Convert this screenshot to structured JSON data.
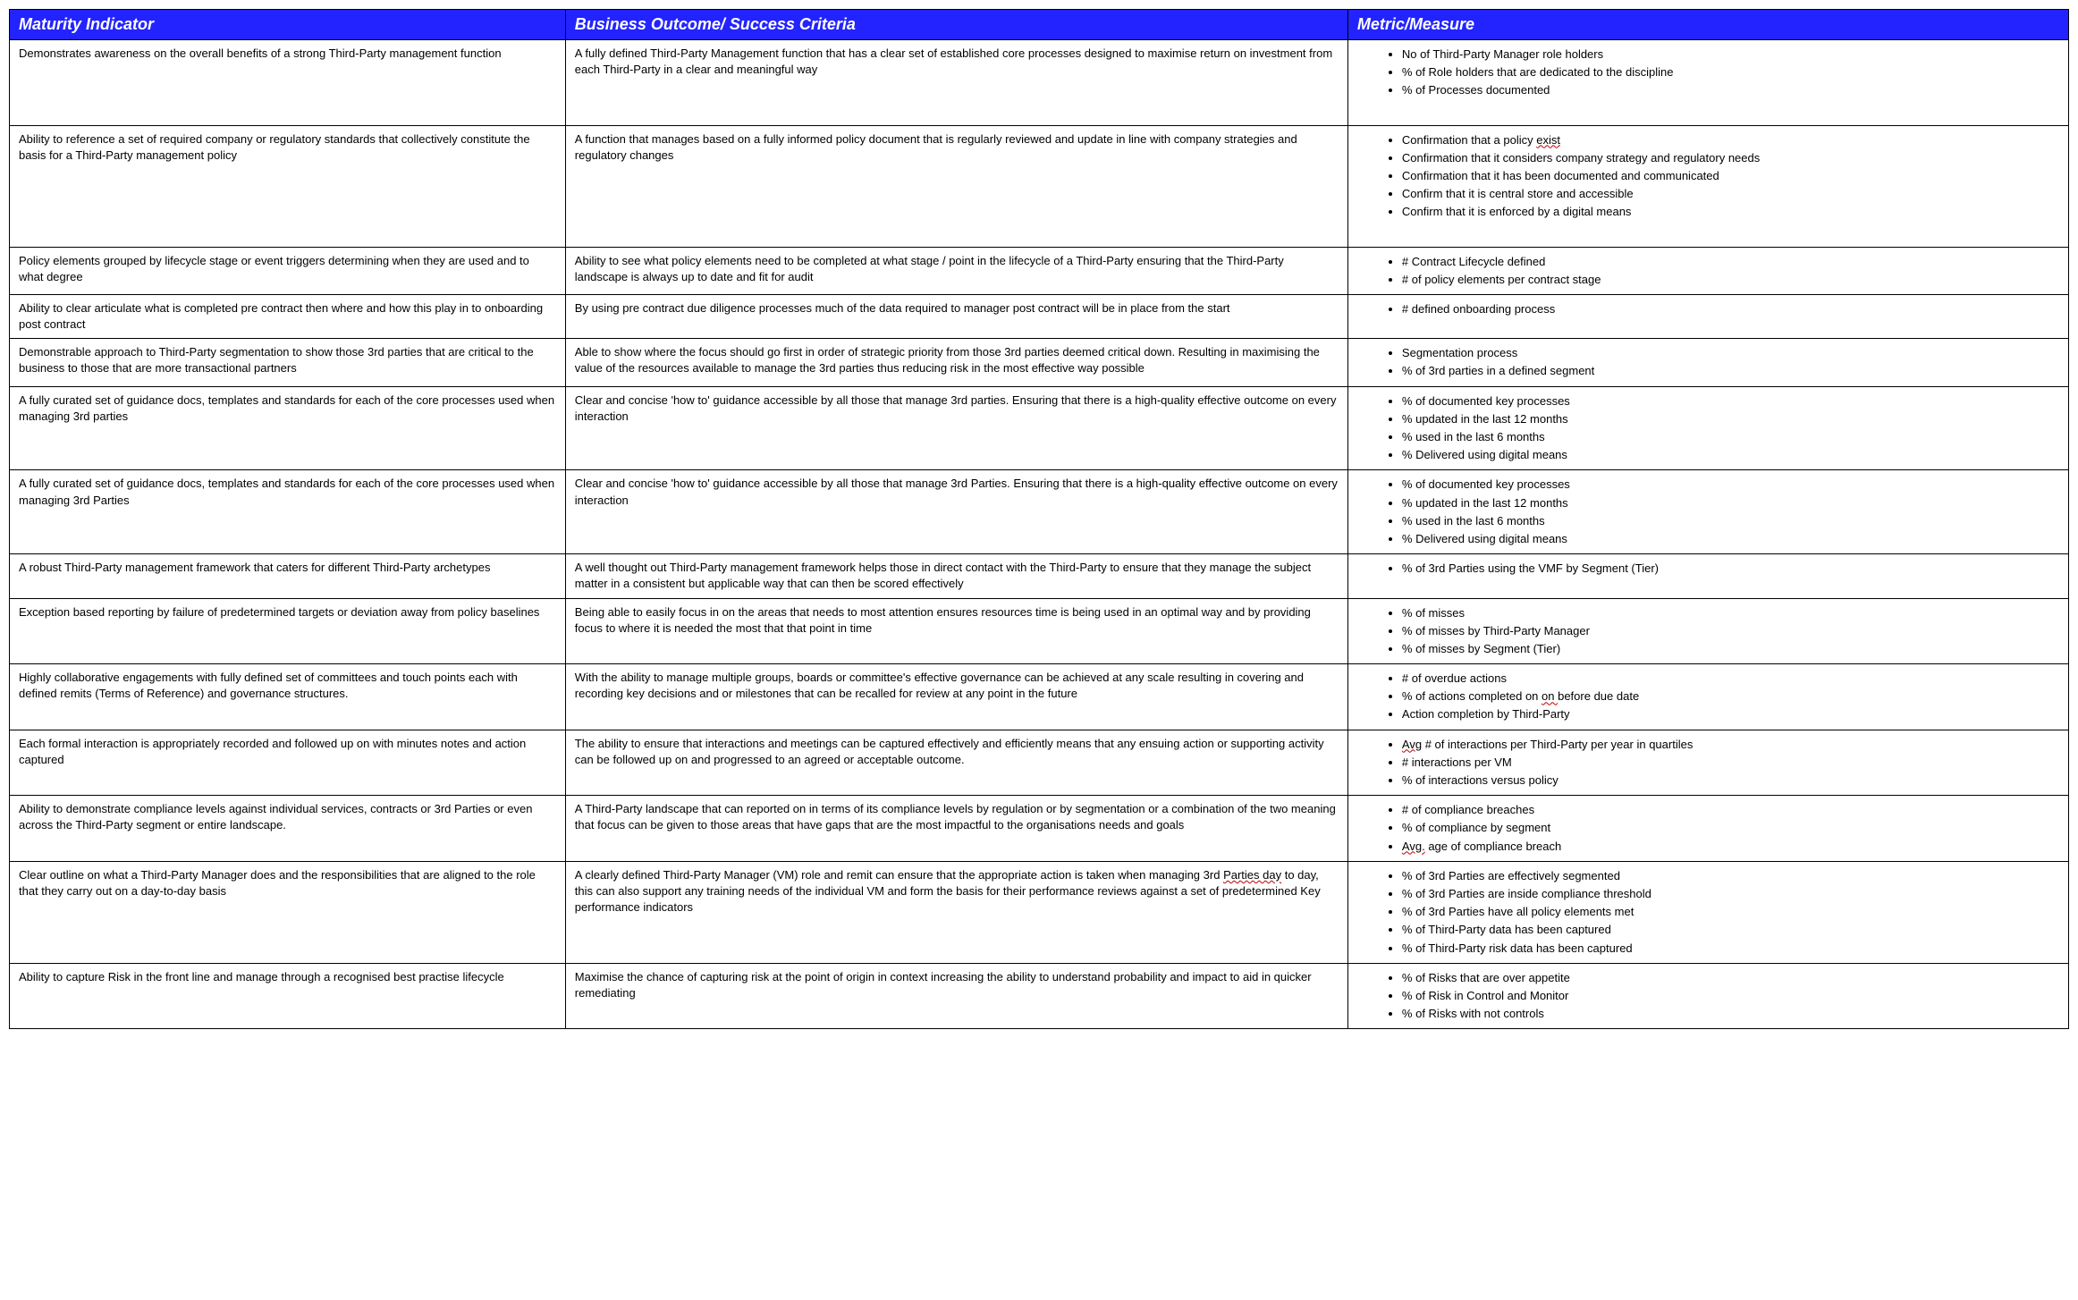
{
  "header_bg": "#2323ff",
  "header_fg": "#ffffff",
  "border_color": "#000000",
  "headers": {
    "c0": "Maturity Indicator",
    "c1": "Business Outcome/ Success Criteria",
    "c2": "Metric/Measure"
  },
  "rows": [
    {
      "indicator": "Demonstrates awareness on the overall benefits of a strong Third-Party management function",
      "outcome": "A fully defined Third-Party Management function that has a clear set of established core processes designed to maximise return on investment from each Third-Party in a clear and meaningful way",
      "metrics": [
        "No of Third-Party Manager role holders",
        "% of Role holders that are dedicated to the discipline",
        "% of Processes documented"
      ],
      "extra_pad_bottom": true
    },
    {
      "indicator": "Ability to reference a set of required company or regulatory standards that collectively constitute the basis for a Third-Party management policy",
      "outcome": "A function that manages based on a fully informed policy document that is regularly reviewed and update in line with company strategies and regulatory changes",
      "metrics": [
        "Confirmation that a policy <span class=\"squig\">exist</span>",
        "Confirmation that it considers company strategy and regulatory needs",
        "Confirmation that it has been documented and communicated",
        "Confirm that it is central store and accessible",
        "Confirm that it is enforced by a digital means"
      ],
      "extra_pad_bottom": true
    },
    {
      "indicator": "Policy elements grouped by lifecycle stage or event triggers determining when they are used and to what degree",
      "outcome": "Ability to see what policy elements need to be completed at what stage / point in the lifecycle of a Third-Party ensuring that the Third-Party landscape is always up to date and fit for audit",
      "metrics": [
        "# Contract Lifecycle defined",
        "# of policy elements per contract stage"
      ]
    },
    {
      "indicator": "Ability to clear articulate what is completed pre contract then where and how this play in to onboarding post contract",
      "outcome": "By using pre contract due diligence processes much of the data required to manager post contract will be in place from the start",
      "metrics": [
        "# defined onboarding process"
      ]
    },
    {
      "indicator": "Demonstrable approach to Third-Party segmentation to show those 3rd parties that are critical to the business to those that are more transactional partners",
      "outcome": "Able to show where the focus should go first in order of strategic priority from those 3rd parties deemed critical down. Resulting in maximising the value of the resources available to manage the 3rd parties thus reducing risk in the most effective way possible",
      "metrics": [
        "Segmentation process",
        "% of 3rd parties in a defined segment"
      ]
    },
    {
      "indicator": "A fully curated set of guidance docs, templates and standards for each of the core processes used when managing 3rd parties",
      "outcome": "Clear and concise 'how to' guidance accessible by all those that manage 3rd parties. Ensuring that there is a high-quality effective outcome on every interaction",
      "metrics": [
        "% of documented key processes",
        "% updated in the last 12 months",
        "% used in the last 6 months",
        "% Delivered using digital means"
      ]
    },
    {
      "indicator": "A fully curated set of guidance docs, templates and standards for each of the core processes used when managing 3rd Parties",
      "outcome": "Clear and concise 'how to' guidance accessible by all those that manage 3rd Parties. Ensuring that there is a high-quality effective outcome on every interaction",
      "metrics": [
        "% of documented key processes",
        "% updated in the last 12 months",
        "% used in the last 6 months",
        "% Delivered using digital means"
      ]
    },
    {
      "indicator": "A robust Third-Party management framework that caters for different Third-Party archetypes",
      "outcome": "A well thought out Third-Party management framework helps those in direct contact with the Third-Party to ensure that they manage the subject matter in a consistent but applicable way that can then be scored effectively",
      "metrics": [
        "% of 3rd Parties using the VMF by Segment (Tier)"
      ]
    },
    {
      "indicator": "Exception based reporting by failure of predetermined targets or deviation away from policy baselines",
      "outcome": "Being able to easily focus in on the areas that needs to most attention ensures resources time is being used in an optimal way and by providing focus to where it is needed the most that that point in time",
      "metrics": [
        "% of misses",
        "% of misses by Third-Party Manager",
        "% of misses by Segment (Tier)"
      ]
    },
    {
      "indicator": "Highly collaborative engagements with fully defined set of committees and touch points each with defined remits (Terms of Reference) and governance structures.",
      "outcome": "With the ability to manage multiple groups, boards or committee's effective governance can be achieved at any scale resulting in covering and recording key decisions and or milestones that can be recalled for review at any point in the future",
      "metrics": [
        "# of overdue actions",
        "% of actions completed on <span class=\"squig\">on </span>before due date",
        "Action completion by Third-Party"
      ]
    },
    {
      "indicator": "Each formal interaction is appropriately recorded and followed up on with minutes notes and action captured",
      "outcome": "The ability to ensure that interactions and meetings can be captured effectively and efficiently means that any ensuing action or supporting activity can be followed up on and progressed to an agreed or acceptable outcome.",
      "metrics": [
        "<span class=\"squig\">Avg</span> # of interactions per Third-Party per year in quartiles",
        "# interactions per VM",
        "% of interactions versus policy"
      ]
    },
    {
      "indicator": "Ability to demonstrate compliance levels against individual services, contracts or 3rd Parties or even across the Third-Party segment or entire landscape.",
      "outcome": "A Third-Party landscape that can reported on in terms of its compliance levels by regulation or by segmentation or a combination of the two meaning that focus can be given to those areas that have gaps that are the most impactful to the organisations needs and goals",
      "metrics": [
        "# of compliance breaches",
        "% of compliance by segment",
        "<span class=\"squig\">Avg.</span> age of compliance breach"
      ]
    },
    {
      "indicator": "Clear outline on what a Third-Party Manager does and the responsibilities that are aligned to the role that they carry out on a day-to-day basis",
      "outcome": "A clearly defined Third-Party Manager (VM) role and remit can ensure that the appropriate action is taken when managing 3rd <span class=\"squig\">Parties day</span> to day, this can also support any training needs of the individual VM and form the basis for their performance reviews against a set of predetermined Key performance indicators",
      "metrics": [
        "% of 3rd Parties are effectively segmented",
        "% of 3rd Parties are inside compliance threshold",
        "% of 3rd Parties have all policy elements met",
        "% of Third-Party data has been captured",
        "% of Third-Party risk data has been captured"
      ]
    },
    {
      "indicator": "Ability to capture Risk in the front line and manage through a recognised best practise lifecycle",
      "outcome": "Maximise the chance of capturing risk at the point of origin in context increasing the ability to understand probability and impact to aid in quicker remediating",
      "metrics": [
        "% of Risks that are over appetite",
        "% of Risk in Control and Monitor",
        "% of Risks with not controls"
      ]
    }
  ]
}
